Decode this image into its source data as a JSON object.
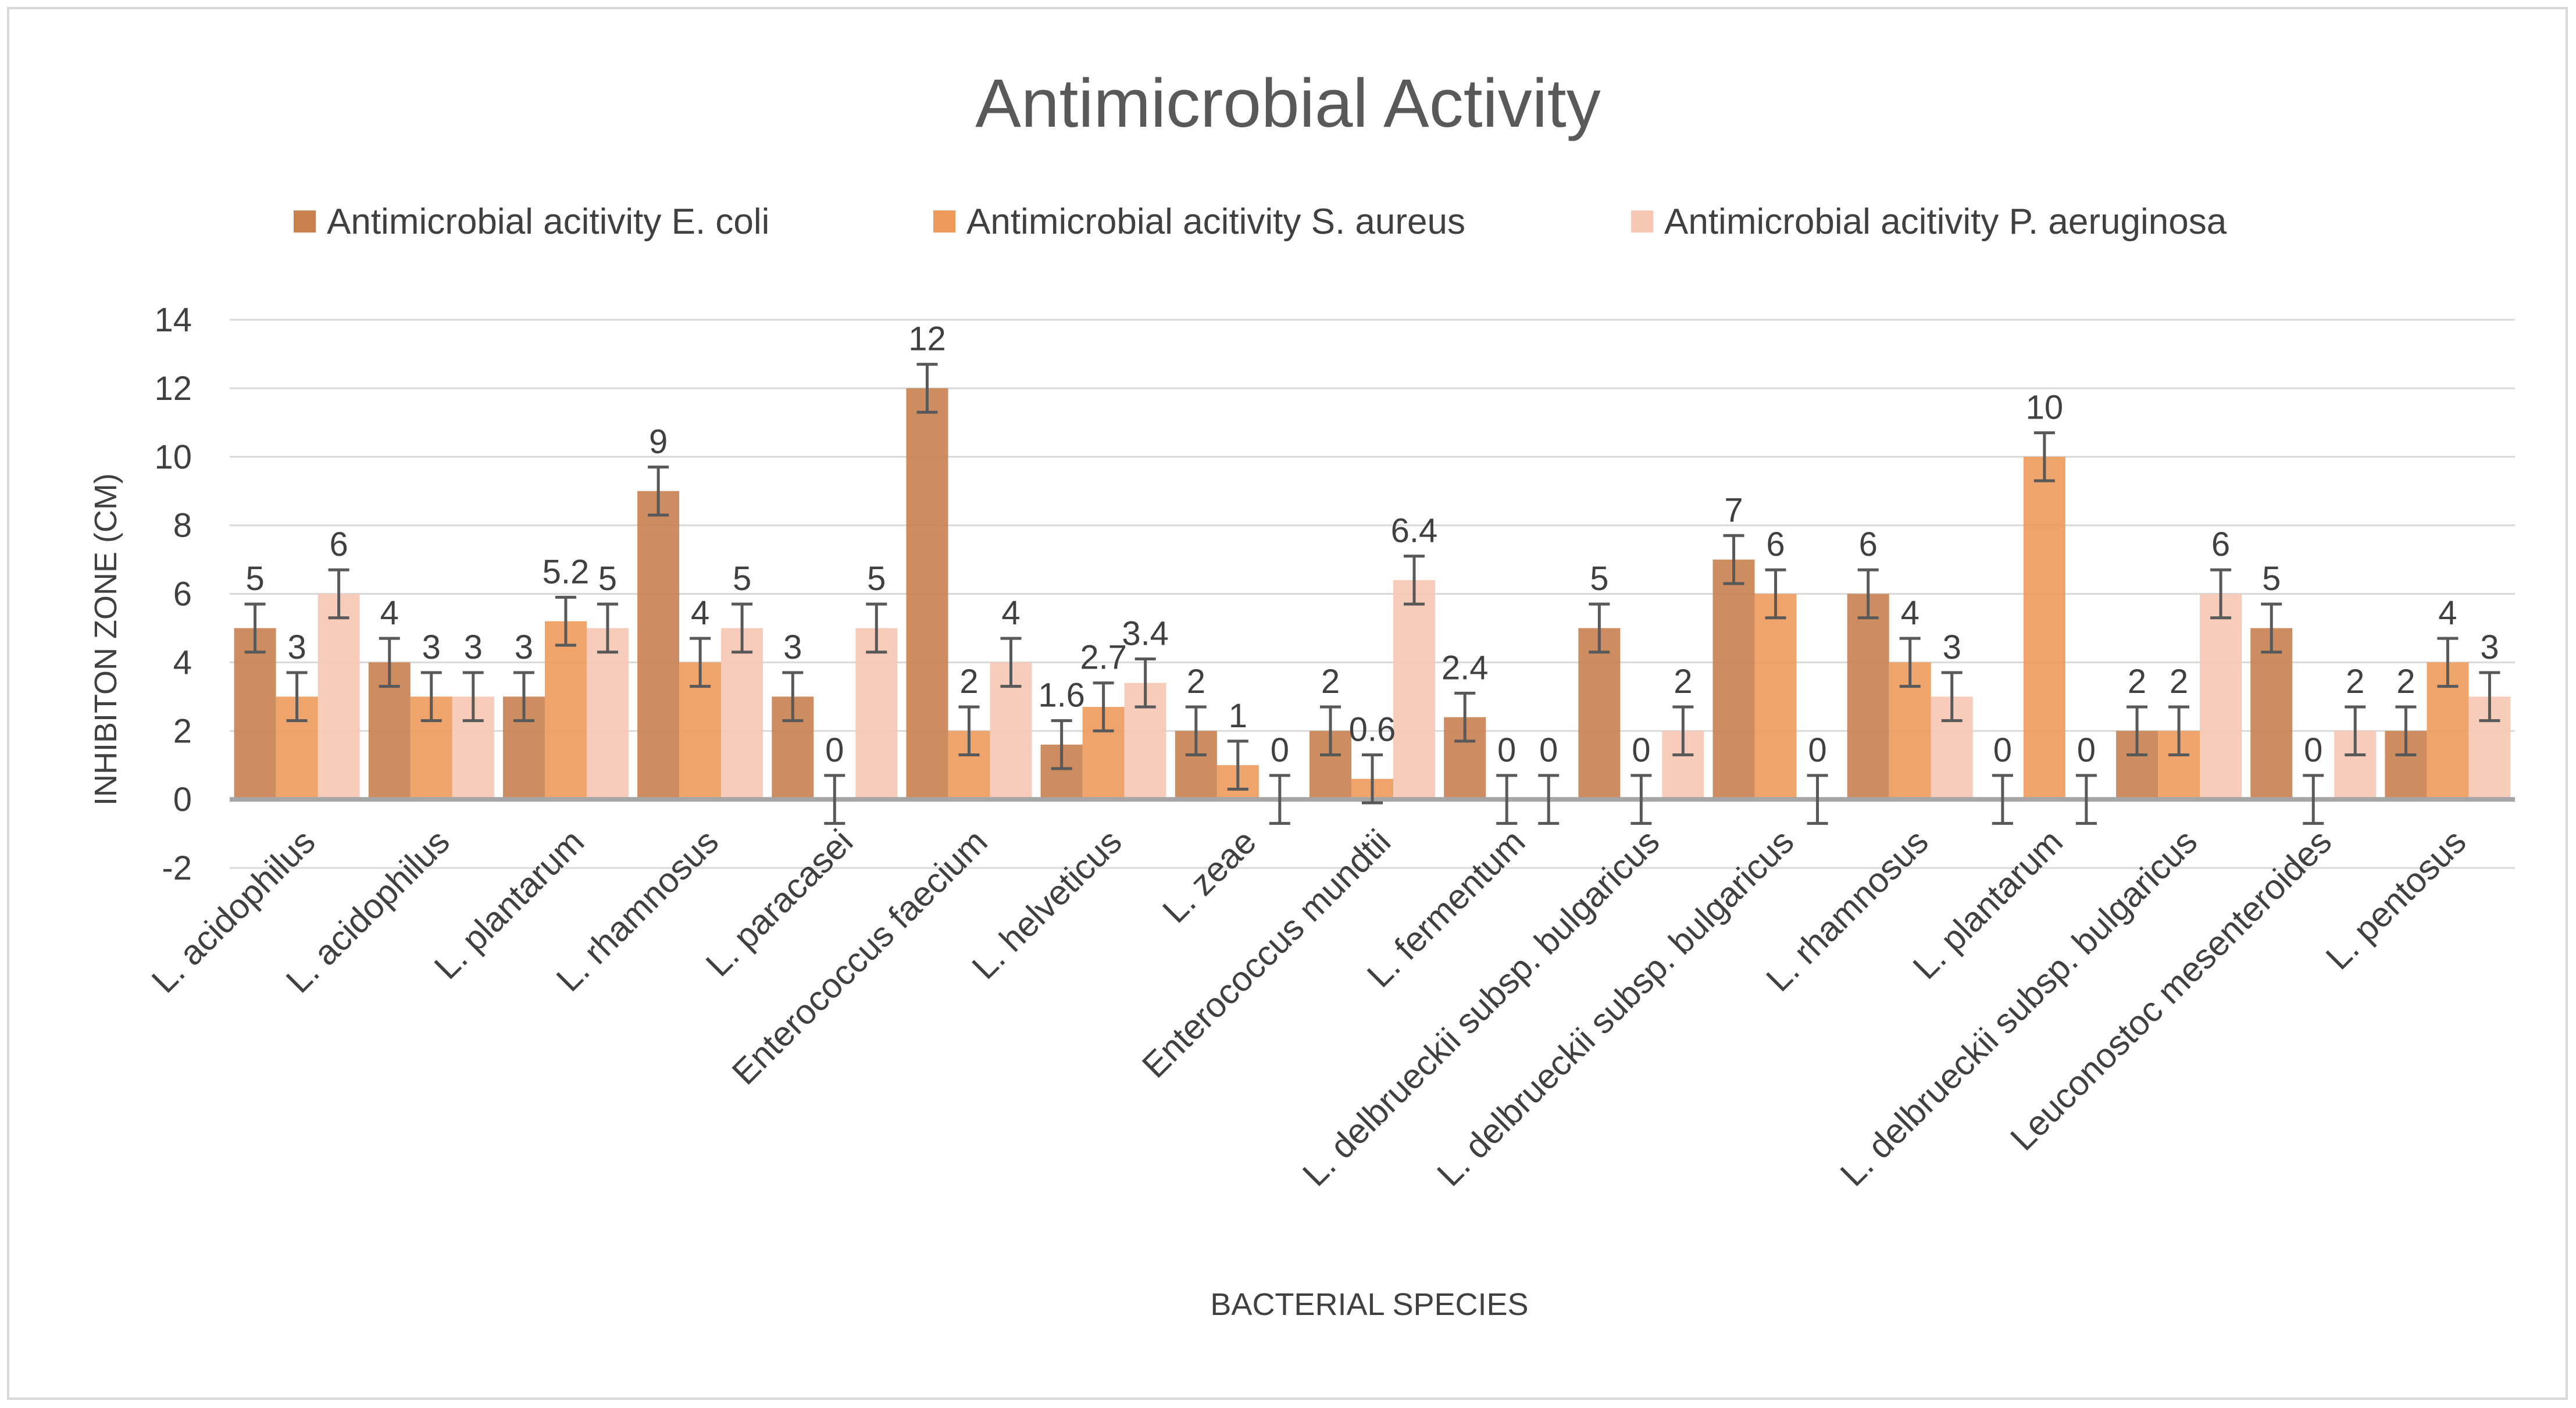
{
  "chart_data": {
    "type": "bar",
    "title": "Antimicrobial Activity",
    "xlabel": "BACTERIAL SPECIES",
    "ylabel": "INHIBITON ZONE (CM)",
    "ylim": [
      -2,
      14
    ],
    "yticks": [
      -2,
      0,
      2,
      4,
      6,
      8,
      10,
      12,
      14
    ],
    "grid": true,
    "legend_position": "top",
    "categories": [
      "L. acidophilus",
      "L. acidophilus",
      "L. plantarum",
      "L. rhamnosus",
      "L. paracasei",
      "Enterococcus faecium",
      "L. helveticus",
      "L. zeae",
      "Enterococcus mundtii",
      "L. fermentum",
      "L. delbrueckii subsp. bulgaricus",
      "L. delbrueckii subsp. bulgaricus",
      "L. rhamnosus",
      "L. plantarum",
      "L. delbrueckii subsp. bulgaricus",
      "Leuconostoc mesenteroides",
      "L. pentosus"
    ],
    "series": [
      {
        "name": "Antimicrobial acitivity E. coli",
        "color": "#c8814f",
        "values": [
          5,
          4,
          3,
          9,
          3,
          12,
          1.6,
          2,
          2,
          2.4,
          5,
          7,
          6,
          0,
          2,
          5,
          2
        ],
        "labels": [
          "5",
          "4",
          "3",
          "9",
          "3",
          "12",
          "1.6",
          "2",
          "2",
          "2.4",
          "5",
          "7",
          "6",
          "0",
          "2",
          "5",
          "2"
        ]
      },
      {
        "name": "Antimicrobial acitivity S. aureus",
        "color": "#ed9a5c",
        "values": [
          3,
          3,
          5.2,
          4,
          0,
          2,
          2.7,
          1,
          0.6,
          0,
          0,
          6,
          4,
          10,
          2,
          0,
          4
        ],
        "labels": [
          "3",
          "3",
          "5.2",
          "4",
          "0",
          "2",
          "2.7",
          "1",
          "0.6",
          "0",
          "0",
          "6",
          "4",
          "10",
          "2",
          "0",
          "4"
        ]
      },
      {
        "name": "Antimicrobial acitivity P. aeruginosa",
        "color": "#f6c7b3",
        "values": [
          6,
          3,
          5,
          5,
          5,
          4,
          3.4,
          0,
          6.4,
          0,
          2,
          0,
          3,
          0,
          6,
          2,
          3
        ],
        "labels": [
          "6",
          "3",
          "5",
          "5",
          "5",
          "4",
          "3.4",
          "0",
          "6.4",
          "0",
          "2",
          "0",
          "3",
          "0",
          "6",
          "2",
          "3"
        ]
      }
    ],
    "error_bar": 0.7
  }
}
